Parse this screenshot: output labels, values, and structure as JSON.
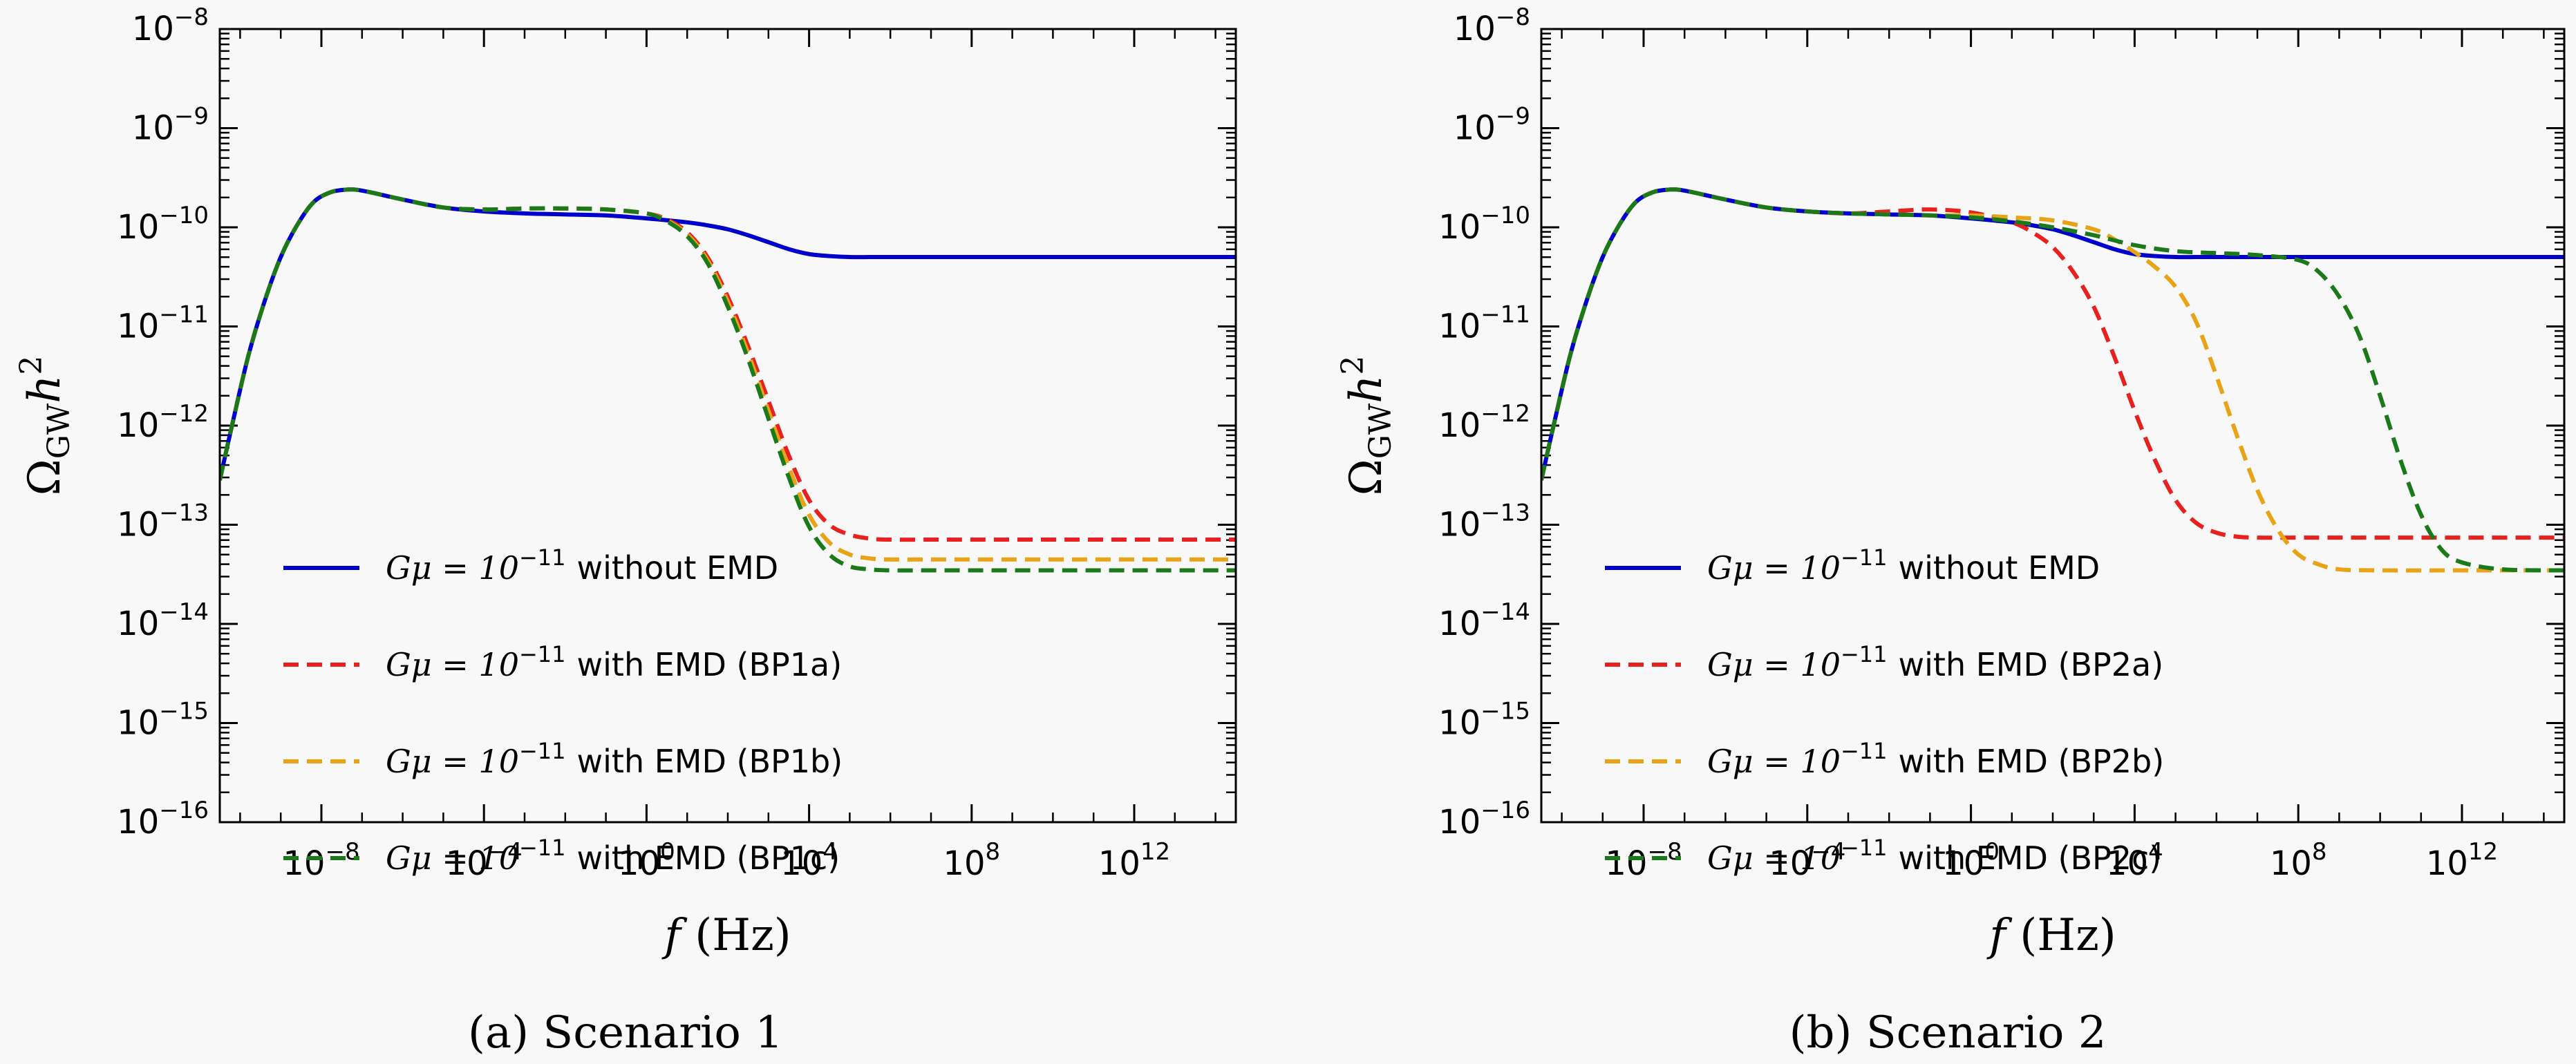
{
  "chart_data": [
    {
      "type": "line",
      "caption": "(a) Scenario 1",
      "xlabel_var": "f",
      "xlabel_unit": "(Hz)",
      "ylabel_var": "Ω",
      "ylabel_sub": "GW",
      "ylabel_var2": "h",
      "ylabel_exp": "2",
      "xscale": "log",
      "yscale": "log",
      "xlim_log10": [
        -10.5,
        14.5
      ],
      "ylim_log10": [
        -16,
        -8
      ],
      "x_ticks": [
        {
          "exp": -8,
          "base": "10",
          "sup": "−8"
        },
        {
          "exp": -4,
          "base": "10",
          "sup": "−4"
        },
        {
          "exp": 0,
          "base": "10",
          "sup": "0"
        },
        {
          "exp": 4,
          "base": "10",
          "sup": "4"
        },
        {
          "exp": 8,
          "base": "10",
          "sup": "8"
        },
        {
          "exp": 12,
          "base": "10",
          "sup": "12"
        }
      ],
      "y_ticks": [
        {
          "exp": -8,
          "base": "10",
          "sup": "−8"
        },
        {
          "exp": -9,
          "base": "10",
          "sup": "−9"
        },
        {
          "exp": -10,
          "base": "10",
          "sup": "−10"
        },
        {
          "exp": -11,
          "base": "10",
          "sup": "−11"
        },
        {
          "exp": -12,
          "base": "10",
          "sup": "−12"
        },
        {
          "exp": -13,
          "base": "10",
          "sup": "−13"
        },
        {
          "exp": -14,
          "base": "10",
          "sup": "−14"
        },
        {
          "exp": -15,
          "base": "10",
          "sup": "−15"
        },
        {
          "exp": -16,
          "base": "10",
          "sup": "−16"
        }
      ],
      "legend_position": "lower-left",
      "series": [
        {
          "name": "without EMD",
          "name_math": "Gμ = 10",
          "name_exp": "−11",
          "color": "#0000cc",
          "style": "solid",
          "x_log10": [
            -10.5,
            -10.2,
            -9.8,
            -9.4,
            -9.0,
            -8.6,
            -8.2,
            -7.8,
            -7.4,
            -7.0,
            -6.0,
            -5.0,
            -4.0,
            -3.0,
            -2.0,
            -1.0,
            0.0,
            1.0,
            1.5,
            2.0,
            2.5,
            3.0,
            3.5,
            4.0,
            4.5,
            5.0,
            5.5,
            6.0,
            8.0,
            10.0,
            12.0,
            14.5
          ],
          "y_log10": [
            -12.55,
            -12.0,
            -11.3,
            -10.75,
            -10.3,
            -9.98,
            -9.75,
            -9.65,
            -9.62,
            -9.63,
            -9.72,
            -9.8,
            -9.84,
            -9.86,
            -9.87,
            -9.88,
            -9.91,
            -9.95,
            -9.98,
            -10.02,
            -10.08,
            -10.15,
            -10.22,
            -10.27,
            -10.29,
            -10.3,
            -10.3,
            -10.3,
            -10.3,
            -10.3,
            -10.3,
            -10.3
          ]
        },
        {
          "name": "with EMD (BP1a)",
          "name_math": "Gμ = 10",
          "name_exp": "−11",
          "color": "#e8201e",
          "style": "dashed",
          "x_log10": [
            -10.5,
            -10.2,
            -9.8,
            -9.4,
            -9.0,
            -8.6,
            -8.2,
            -7.8,
            -7.4,
            -7.0,
            -6.0,
            -5.0,
            -4.0,
            -3.0,
            -2.0,
            -1.0,
            0.0,
            0.5,
            1.0,
            1.5,
            2.0,
            2.5,
            3.0,
            3.5,
            4.0,
            4.5,
            5.0,
            5.5,
            6.0,
            7.0,
            8.0,
            10.0,
            12.0,
            14.5
          ],
          "y_log10": [
            -12.55,
            -12.0,
            -11.3,
            -10.75,
            -10.3,
            -9.98,
            -9.75,
            -9.65,
            -9.62,
            -9.63,
            -9.72,
            -9.8,
            -9.82,
            -9.81,
            -9.81,
            -9.82,
            -9.86,
            -9.92,
            -10.05,
            -10.3,
            -10.7,
            -11.2,
            -11.75,
            -12.3,
            -12.75,
            -13.0,
            -13.1,
            -13.14,
            -13.15,
            -13.15,
            -13.15,
            -13.15,
            -13.15,
            -13.15
          ]
        },
        {
          "name": "with EMD (BP1b)",
          "name_math": "Gμ = 10",
          "name_exp": "−11",
          "color": "#e8a317",
          "style": "dashed",
          "x_log10": [
            -10.5,
            -10.2,
            -9.8,
            -9.4,
            -9.0,
            -8.6,
            -8.2,
            -7.8,
            -7.4,
            -7.0,
            -6.0,
            -5.0,
            -4.0,
            -3.0,
            -2.0,
            -1.0,
            0.0,
            0.5,
            1.0,
            1.5,
            2.0,
            2.5,
            3.0,
            3.5,
            4.0,
            4.5,
            5.0,
            5.5,
            6.0,
            7.0,
            8.0,
            10.0,
            12.0,
            14.5
          ],
          "y_log10": [
            -12.55,
            -12.0,
            -11.3,
            -10.75,
            -10.3,
            -9.98,
            -9.75,
            -9.65,
            -9.62,
            -9.63,
            -9.72,
            -9.8,
            -9.82,
            -9.81,
            -9.81,
            -9.82,
            -9.86,
            -9.93,
            -10.07,
            -10.33,
            -10.75,
            -11.27,
            -11.85,
            -12.42,
            -12.9,
            -13.18,
            -13.3,
            -13.34,
            -13.35,
            -13.35,
            -13.35,
            -13.35,
            -13.35,
            -13.35
          ]
        },
        {
          "name": "with EMD (BP1c)",
          "name_math": "Gμ = 10",
          "name_exp": "−11",
          "color": "#1a7a1a",
          "style": "dashed",
          "x_log10": [
            -10.5,
            -10.2,
            -9.8,
            -9.4,
            -9.0,
            -8.6,
            -8.2,
            -7.8,
            -7.4,
            -7.0,
            -6.0,
            -5.0,
            -4.0,
            -3.0,
            -2.0,
            -1.0,
            0.0,
            0.5,
            1.0,
            1.5,
            2.0,
            2.5,
            3.0,
            3.5,
            4.0,
            4.5,
            5.0,
            5.5,
            6.0,
            7.0,
            8.0,
            10.0,
            12.0,
            14.5
          ],
          "y_log10": [
            -12.55,
            -12.0,
            -11.3,
            -10.75,
            -10.3,
            -9.98,
            -9.75,
            -9.65,
            -9.62,
            -9.63,
            -9.72,
            -9.8,
            -9.82,
            -9.81,
            -9.81,
            -9.82,
            -9.86,
            -9.94,
            -10.09,
            -10.36,
            -10.8,
            -11.33,
            -11.93,
            -12.52,
            -13.02,
            -13.3,
            -13.42,
            -13.45,
            -13.46,
            -13.46,
            -13.46,
            -13.46,
            -13.46,
            -13.46
          ]
        }
      ]
    },
    {
      "type": "line",
      "caption": "(b) Scenario 2",
      "xlabel_var": "f",
      "xlabel_unit": "(Hz)",
      "ylabel_var": "Ω",
      "ylabel_sub": "GW",
      "ylabel_var2": "h",
      "ylabel_exp": "2",
      "xscale": "log",
      "yscale": "log",
      "xlim_log10": [
        -10.5,
        14.5
      ],
      "ylim_log10": [
        -16,
        -8
      ],
      "x_ticks": [
        {
          "exp": -8,
          "base": "10",
          "sup": "−8"
        },
        {
          "exp": -4,
          "base": "10",
          "sup": "−4"
        },
        {
          "exp": 0,
          "base": "10",
          "sup": "0"
        },
        {
          "exp": 4,
          "base": "10",
          "sup": "4"
        },
        {
          "exp": 8,
          "base": "10",
          "sup": "8"
        },
        {
          "exp": 12,
          "base": "10",
          "sup": "12"
        }
      ],
      "y_ticks": [
        {
          "exp": -8,
          "base": "10",
          "sup": "−8"
        },
        {
          "exp": -9,
          "base": "10",
          "sup": "−9"
        },
        {
          "exp": -10,
          "base": "10",
          "sup": "−10"
        },
        {
          "exp": -11,
          "base": "10",
          "sup": "−11"
        },
        {
          "exp": -12,
          "base": "10",
          "sup": "−12"
        },
        {
          "exp": -13,
          "base": "10",
          "sup": "−13"
        },
        {
          "exp": -14,
          "base": "10",
          "sup": "−14"
        },
        {
          "exp": -15,
          "base": "10",
          "sup": "−15"
        },
        {
          "exp": -16,
          "base": "10",
          "sup": "−16"
        }
      ],
      "legend_position": "lower-left",
      "series": [
        {
          "name": "without EMD",
          "name_math": "Gμ = 10",
          "name_exp": "−11",
          "color": "#0000cc",
          "style": "solid",
          "x_log10": [
            -10.5,
            -10.2,
            -9.8,
            -9.4,
            -9.0,
            -8.6,
            -8.2,
            -7.8,
            -7.4,
            -7.0,
            -6.0,
            -5.0,
            -4.0,
            -3.0,
            -2.0,
            -1.0,
            0.0,
            1.0,
            1.5,
            2.0,
            2.5,
            3.0,
            3.5,
            4.0,
            4.5,
            5.0,
            5.5,
            6.0,
            8.0,
            10.0,
            12.0,
            14.5
          ],
          "y_log10": [
            -12.55,
            -12.0,
            -11.3,
            -10.75,
            -10.3,
            -9.98,
            -9.75,
            -9.65,
            -9.62,
            -9.63,
            -9.72,
            -9.8,
            -9.84,
            -9.86,
            -9.87,
            -9.88,
            -9.91,
            -9.95,
            -9.98,
            -10.02,
            -10.08,
            -10.15,
            -10.22,
            -10.27,
            -10.29,
            -10.3,
            -10.3,
            -10.3,
            -10.3,
            -10.3,
            -10.3,
            -10.3
          ]
        },
        {
          "name": "with EMD (BP2a)",
          "name_math": "Gμ = 10",
          "name_exp": "−11",
          "color": "#e8201e",
          "style": "dashed",
          "x_log10": [
            -10.5,
            -10.2,
            -9.8,
            -9.4,
            -9.0,
            -8.6,
            -8.2,
            -7.8,
            -7.4,
            -7.0,
            -6.0,
            -5.0,
            -4.0,
            -3.0,
            -2.0,
            -1.0,
            0.0,
            1.0,
            1.5,
            2.0,
            2.5,
            3.0,
            3.5,
            4.0,
            4.5,
            5.0,
            5.5,
            6.0,
            6.5,
            7.0,
            8.0,
            10.0,
            12.0,
            14.5
          ],
          "y_log10": [
            -12.55,
            -12.0,
            -11.3,
            -10.75,
            -10.3,
            -9.98,
            -9.75,
            -9.65,
            -9.62,
            -9.63,
            -9.72,
            -9.8,
            -9.84,
            -9.86,
            -9.84,
            -9.82,
            -9.85,
            -9.95,
            -10.05,
            -10.2,
            -10.45,
            -10.8,
            -11.3,
            -11.85,
            -12.35,
            -12.75,
            -12.98,
            -13.08,
            -13.12,
            -13.13,
            -13.13,
            -13.13,
            -13.13,
            -13.13
          ]
        },
        {
          "name": "with EMD (BP2b)",
          "name_math": "Gμ = 10",
          "name_exp": "−11",
          "color": "#e8a317",
          "style": "dashed",
          "x_log10": [
            -10.5,
            -10.2,
            -9.8,
            -9.4,
            -9.0,
            -8.6,
            -8.2,
            -7.8,
            -7.4,
            -7.0,
            -6.0,
            -5.0,
            -4.0,
            -3.0,
            -2.0,
            -1.0,
            0.0,
            1.0,
            2.0,
            3.0,
            3.5,
            4.0,
            4.5,
            5.0,
            5.5,
            6.0,
            6.5,
            7.0,
            7.5,
            8.0,
            8.5,
            9.0,
            10.0,
            12.0,
            14.5
          ],
          "y_log10": [
            -12.55,
            -12.0,
            -11.3,
            -10.75,
            -10.3,
            -9.98,
            -9.75,
            -9.65,
            -9.62,
            -9.63,
            -9.72,
            -9.8,
            -9.84,
            -9.86,
            -9.87,
            -9.88,
            -9.88,
            -9.9,
            -9.93,
            -10.02,
            -10.12,
            -10.25,
            -10.4,
            -10.6,
            -10.95,
            -11.5,
            -12.1,
            -12.65,
            -13.05,
            -13.3,
            -13.4,
            -13.45,
            -13.46,
            -13.46,
            -13.46
          ]
        },
        {
          "name": "with EMD (BP2c)",
          "name_math": "Gμ = 10",
          "name_exp": "−11",
          "color": "#1a7a1a",
          "style": "dashed",
          "x_log10": [
            -10.5,
            -10.2,
            -9.8,
            -9.4,
            -9.0,
            -8.6,
            -8.2,
            -7.8,
            -7.4,
            -7.0,
            -6.0,
            -5.0,
            -4.0,
            -3.0,
            -2.0,
            -1.0,
            0.0,
            1.0,
            2.0,
            3.0,
            4.0,
            5.0,
            6.0,
            7.0,
            8.0,
            8.5,
            9.0,
            9.5,
            10.0,
            10.5,
            11.0,
            11.5,
            12.0,
            13.0,
            14.5
          ],
          "y_log10": [
            -12.55,
            -12.0,
            -11.3,
            -10.75,
            -10.3,
            -9.98,
            -9.75,
            -9.65,
            -9.62,
            -9.63,
            -9.72,
            -9.8,
            -9.84,
            -9.86,
            -9.87,
            -9.88,
            -9.9,
            -9.94,
            -10.0,
            -10.08,
            -10.18,
            -10.24,
            -10.26,
            -10.28,
            -10.33,
            -10.45,
            -10.7,
            -11.1,
            -11.7,
            -12.35,
            -12.9,
            -13.25,
            -13.38,
            -13.45,
            -13.46
          ]
        }
      ]
    }
  ]
}
